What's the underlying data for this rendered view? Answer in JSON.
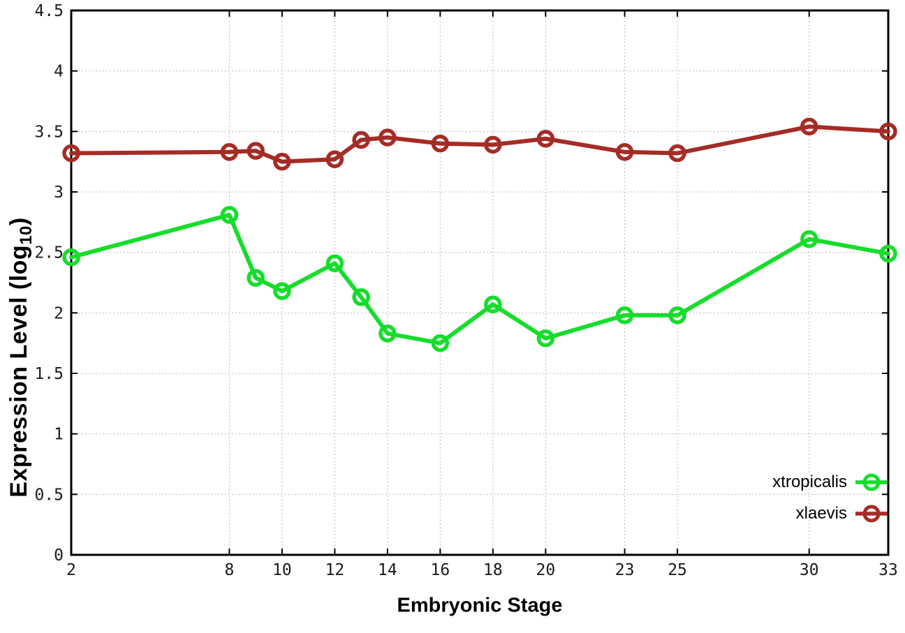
{
  "chart_data": {
    "type": "line",
    "title": "",
    "xlabel": "Embryonic Stage",
    "ylabel": "Expression Level (log10)",
    "ylabel_parts": {
      "base": "Expression Level (log",
      "sub": "10",
      "close": ")"
    },
    "x": [
      2,
      8,
      9,
      10,
      12,
      13,
      14,
      16,
      18,
      20,
      23,
      25,
      30,
      33
    ],
    "series": [
      {
        "name": "xtropicalis",
        "color": "#16dd2c",
        "marker": "open-circle",
        "values": [
          2.46,
          2.81,
          2.29,
          2.18,
          2.41,
          2.13,
          1.83,
          1.75,
          2.07,
          1.79,
          1.98,
          1.98,
          2.61,
          2.49
        ]
      },
      {
        "name": "xlaevis",
        "color": "#a52c26",
        "marker": "open-circle",
        "values": [
          3.32,
          3.33,
          3.34,
          3.25,
          3.27,
          3.43,
          3.45,
          3.4,
          3.39,
          3.44,
          3.33,
          3.32,
          3.54,
          3.5
        ]
      }
    ],
    "xlim": [
      2,
      33
    ],
    "ylim": [
      0,
      4.5
    ],
    "x_ticks": [
      2,
      8,
      10,
      12,
      14,
      16,
      18,
      20,
      23,
      25,
      30,
      33
    ],
    "x_tick_labels": [
      "2",
      "8",
      "10",
      "12",
      "14",
      "16",
      "18",
      "20",
      "23",
      "25",
      "30",
      "33"
    ],
    "y_ticks": [
      0,
      0.5,
      1,
      1.5,
      2,
      2.5,
      3,
      3.5,
      4,
      4.5
    ],
    "y_tick_labels": [
      "0",
      "0.5",
      "1",
      "1.5",
      "2",
      "2.5",
      "3",
      "3.5",
      "4",
      "4.5"
    ],
    "grid": true,
    "grid_style": "dotted",
    "grid_color": "#b9b9b9",
    "border_color": "#000000",
    "tick_label_color": "#1a1a1a",
    "background": "#ffffff",
    "legend_position": "inside-bottom-right"
  }
}
